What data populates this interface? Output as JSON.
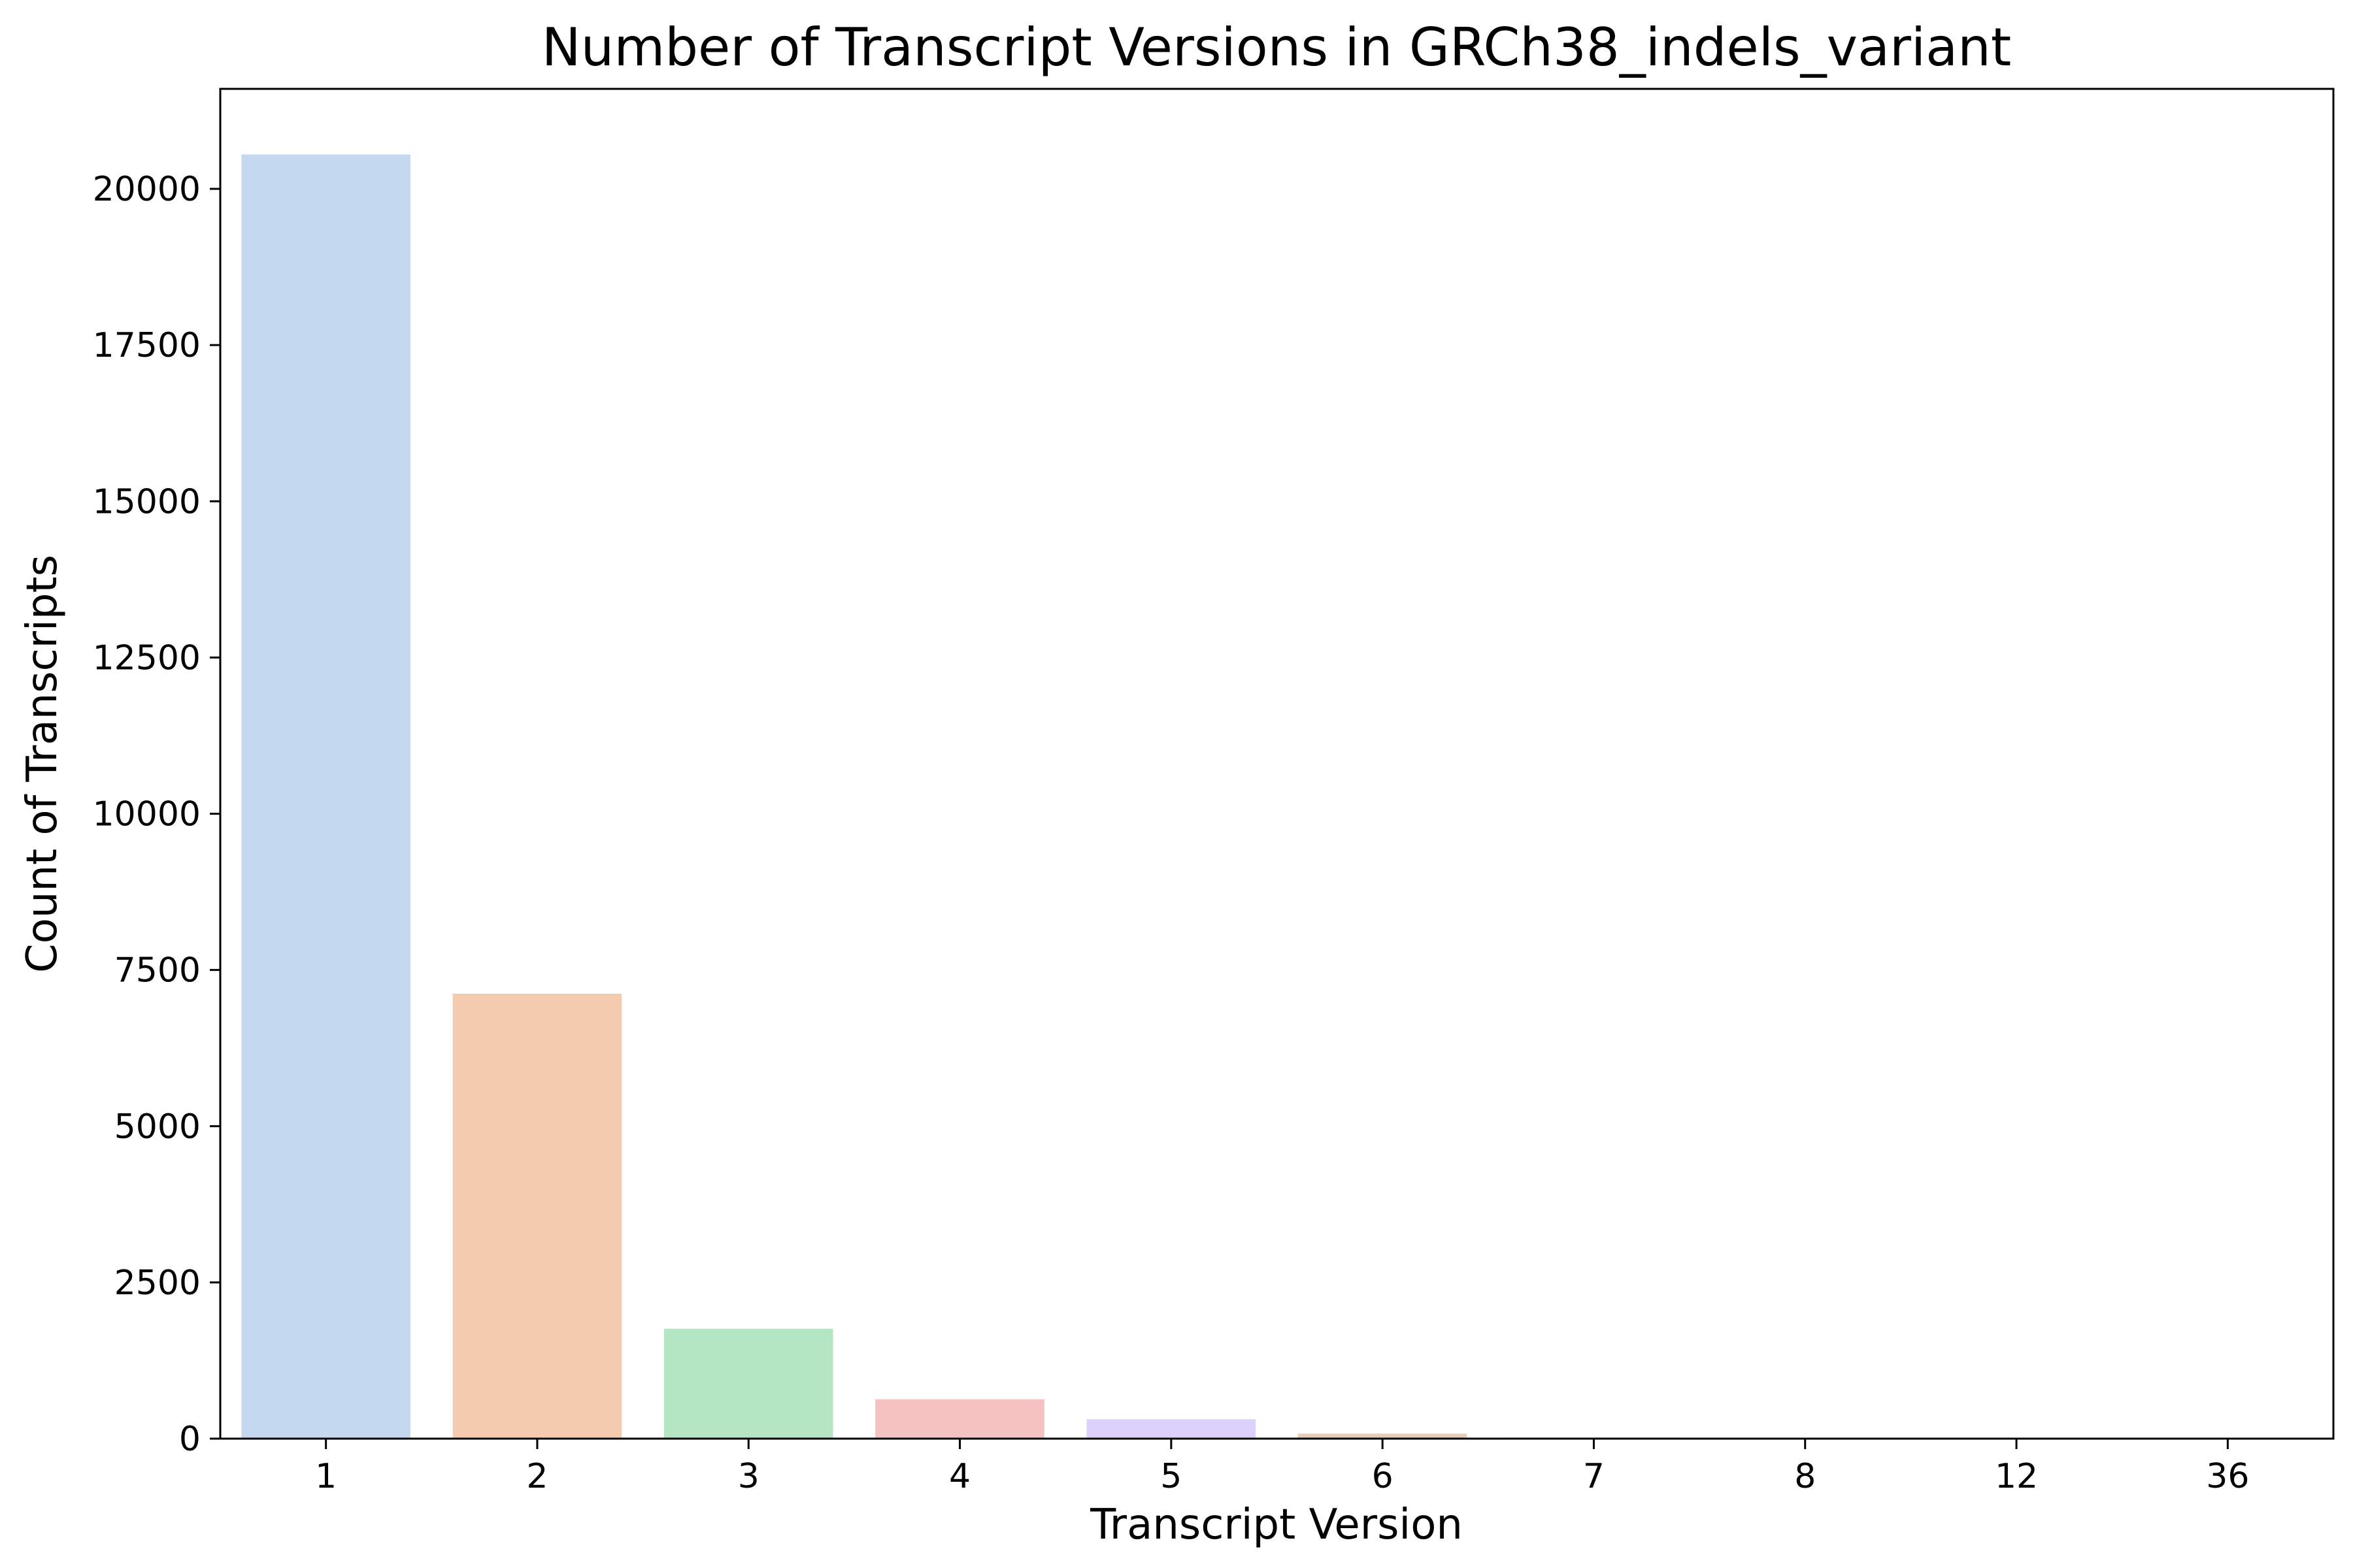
{
  "chart_data": {
    "type": "bar",
    "title": "Number of Transcript Versions in GRCh38_indels_variant",
    "xlabel": "Transcript Version",
    "ylabel": "Count of Transcripts",
    "categories": [
      "1",
      "2",
      "3",
      "4",
      "5",
      "6",
      "7",
      "8",
      "12",
      "36"
    ],
    "values": [
      20550,
      7120,
      1760,
      630,
      310,
      80,
      20,
      6,
      2,
      1
    ],
    "ylim": [
      0,
      21600
    ],
    "yticks": [
      0,
      2500,
      5000,
      7500,
      10000,
      12500,
      15000,
      17500,
      20000
    ],
    "grid": false,
    "colors": [
      "#c4d8ef",
      "#f5cbb0",
      "#b5e6c3",
      "#f5c2c2",
      "#dcd2fb",
      "#e6cebc",
      "#f5d7ec",
      "#d9d9d9",
      "#efecc0",
      "#c8ecf3"
    ]
  }
}
